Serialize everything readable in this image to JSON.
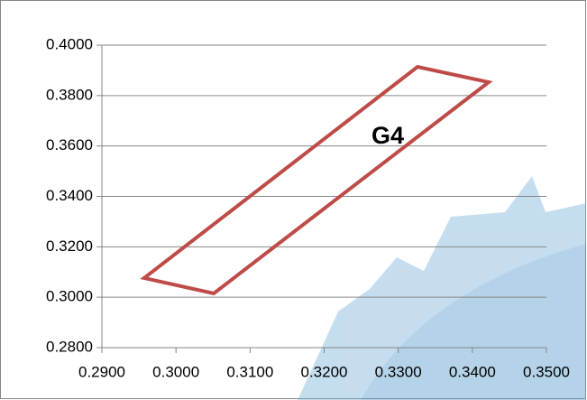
{
  "chart_data": {
    "type": "line",
    "closed": true,
    "annotation": "G4",
    "x": [
      0.2957,
      0.3051,
      0.3422,
      0.3326
    ],
    "series": [
      {
        "color": "#be4b48",
        "values": [
          0.3076,
          0.3015,
          0.3853,
          0.3914
        ]
      }
    ],
    "xlim": [
      0.29,
      0.35
    ],
    "xticks": [
      {
        "value": 0.29,
        "label": "0.2900"
      },
      {
        "value": 0.3,
        "label": "0.3000"
      },
      {
        "value": 0.31,
        "label": "0.3100"
      },
      {
        "value": 0.32,
        "label": "0.3200"
      },
      {
        "value": 0.33,
        "label": "0.3300"
      },
      {
        "value": 0.34,
        "label": "0.3400"
      },
      {
        "value": 0.35,
        "label": "0.3500"
      }
    ],
    "ylim": [
      0.28,
      0.4
    ],
    "yticks": [
      {
        "value": 0.28,
        "label": "0.2800"
      },
      {
        "value": 0.3,
        "label": "0.3000"
      },
      {
        "value": 0.32,
        "label": "0.3200"
      },
      {
        "value": 0.34,
        "label": "0.3400"
      },
      {
        "value": 0.36,
        "label": "0.3600"
      },
      {
        "value": 0.38,
        "label": "0.3800"
      },
      {
        "value": 0.4,
        "label": "0.4000"
      }
    ],
    "grid": true
  }
}
